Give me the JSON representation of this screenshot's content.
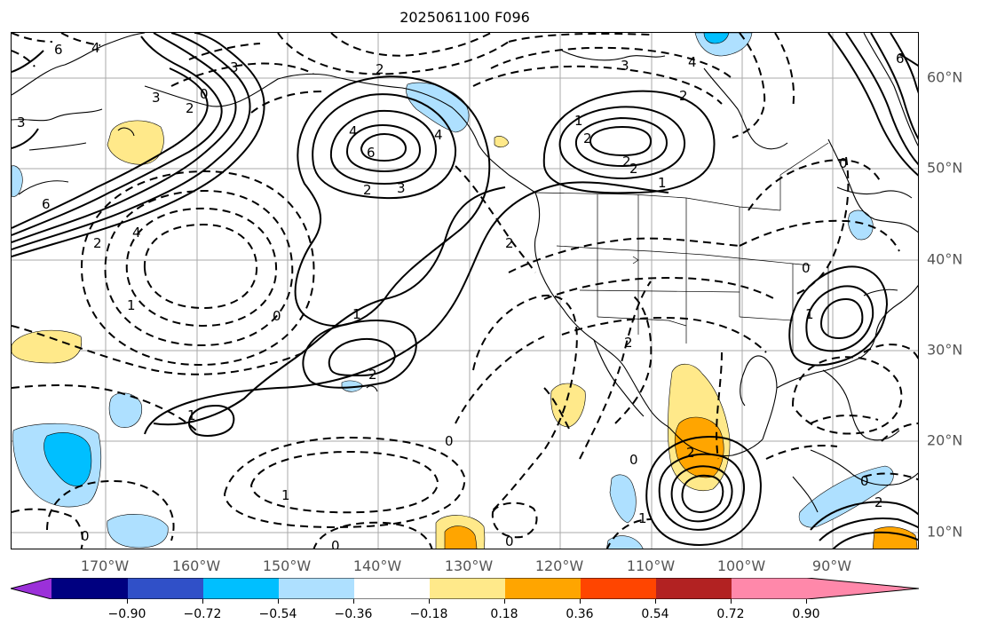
{
  "title": "2025061100 F096",
  "lon_labels": [
    "170°W",
    "160°W",
    "150°W",
    "140°W",
    "130°W",
    "120°W",
    "110°W",
    "100°W",
    "90°W"
  ],
  "lat_labels": [
    "60°N",
    "50°N",
    "40°N",
    "30°N",
    "20°N",
    "10°N"
  ],
  "colorbar": {
    "tick_labels": [
      "−0.90",
      "−0.72",
      "−0.54",
      "−0.36",
      "−0.18",
      "0.18",
      "0.36",
      "0.54",
      "0.72",
      "0.90"
    ],
    "colors": [
      "#9b30d9",
      "#000080",
      "#3050c8",
      "#00bfff",
      "#aee0ff",
      "#ffffff",
      "#ffe98a",
      "#ffa500",
      "#ff4500",
      "#b22222",
      "#ff88aa"
    ]
  },
  "contour_labels": [
    "6",
    "4",
    "3",
    "2",
    "0",
    "6",
    "2",
    "3",
    "2",
    "2",
    "1",
    "2",
    "0",
    "1",
    "2",
    "2",
    "4",
    "3",
    "0",
    "0",
    "1",
    "4",
    "1",
    "2",
    "1",
    "0",
    "2",
    "1",
    "0",
    "2",
    "0",
    "0",
    "0",
    "4",
    "6",
    "2",
    "1",
    "2",
    "3",
    "4",
    "2",
    "1",
    "6",
    "3",
    "0"
  ]
}
